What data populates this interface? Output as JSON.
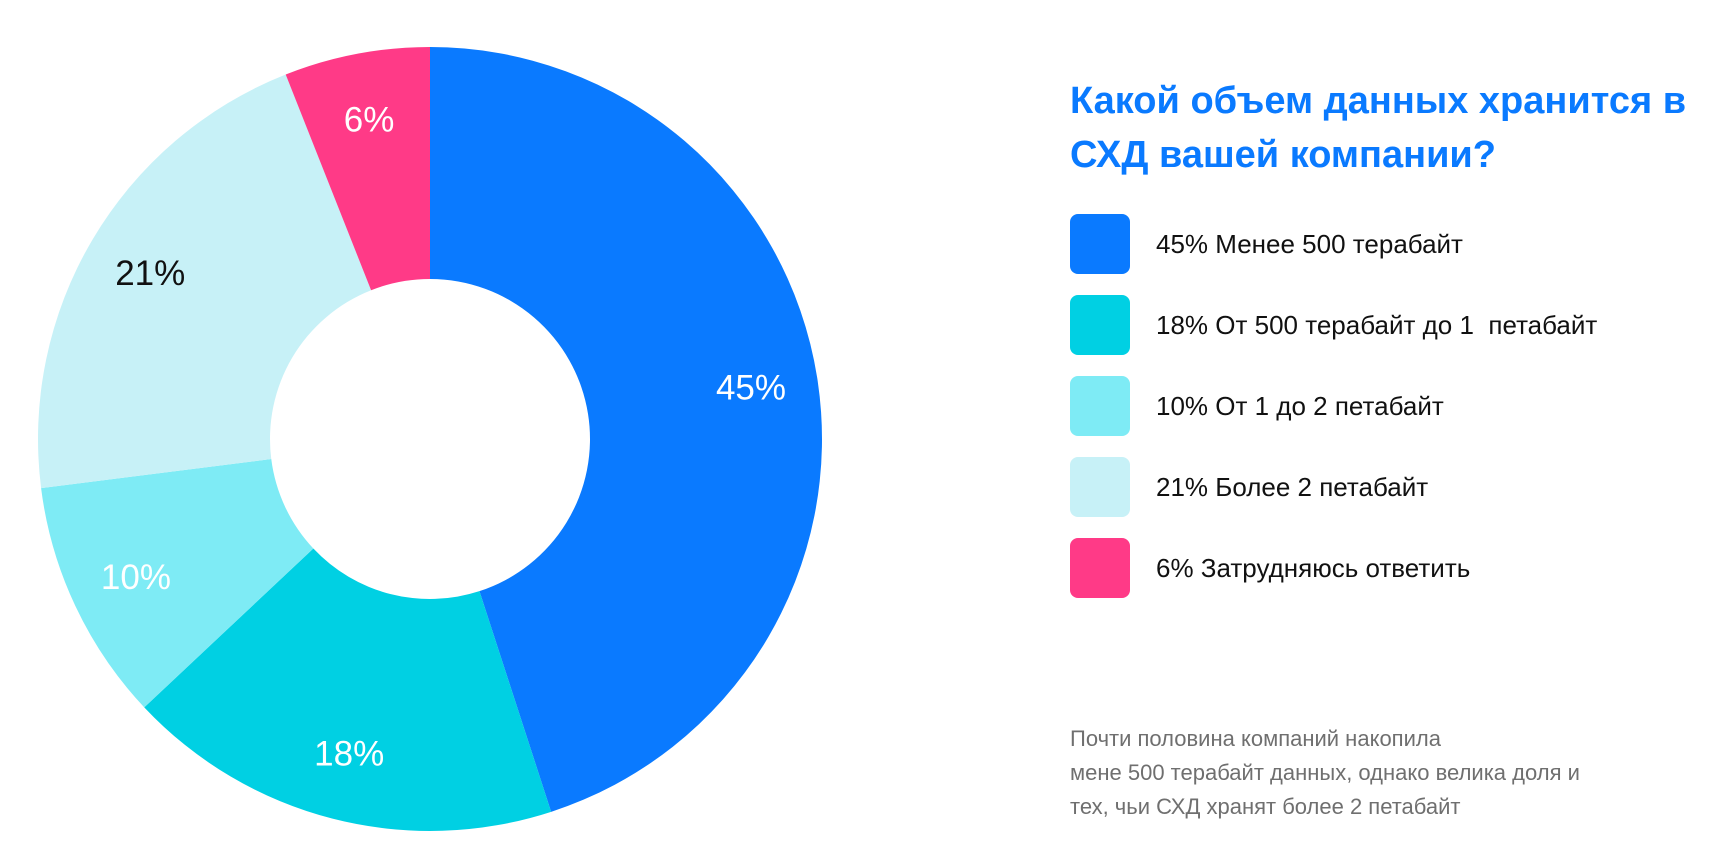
{
  "chart_data": {
    "type": "pie",
    "title": "Какой объем данных хранится в СХД вашей компании?",
    "slices": [
      {
        "label": "45% Менее 500 терабайт",
        "value": 45,
        "display": "45%",
        "color": "#0a7aff",
        "label_color": "#ffffff"
      },
      {
        "label": "18% От 500 терабайт до 1  петабайт",
        "value": 18,
        "display": "18%",
        "color": "#00d0e3",
        "label_color": "#ffffff"
      },
      {
        "label": "10% От 1 до 2 петабайт",
        "value": 10,
        "display": "10%",
        "color": "#7eebf5",
        "label_color": "#ffffff"
      },
      {
        "label": "21% Более 2 петабайт",
        "value": 21,
        "display": "21%",
        "color": "#c7f1f7",
        "label_color": "#111111"
      },
      {
        "label": "6% Затрудняюсь ответить",
        "value": 6,
        "display": "6%",
        "color": "#ff3a87",
        "label_color": "#ffffff"
      }
    ]
  },
  "note": {
    "lines": [
      "Почти половина компаний накопила",
      "мене 500 терабайт данных, однако велика доля и",
      "тех, чьи СХД хранят более 2 петабайт"
    ]
  }
}
